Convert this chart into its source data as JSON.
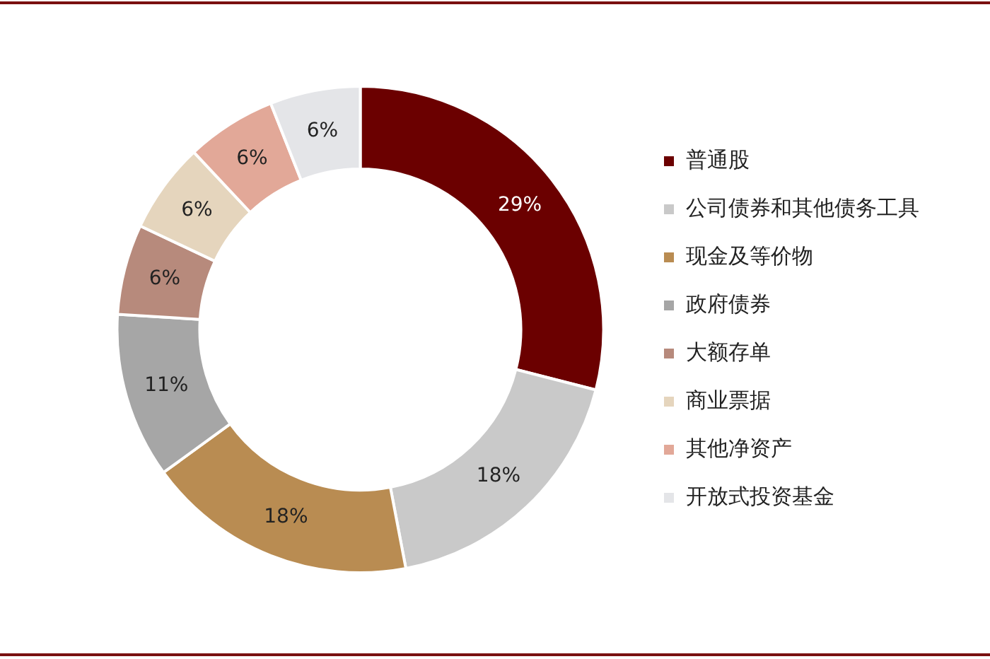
{
  "chart_data": {
    "type": "donut",
    "categories": [
      "普通股",
      "公司债券和其他债务工具",
      "现金及等价物",
      "政府债券",
      "大额存单",
      "商业票据",
      "其他净资产",
      "开放式投资基金"
    ],
    "values": [
      29,
      18,
      18,
      11,
      6,
      6,
      6,
      6
    ],
    "value_labels": [
      "29%",
      "18%",
      "18%",
      "11%",
      "6%",
      "6%",
      "6%",
      "6%"
    ],
    "colors": [
      "#6b0000",
      "#c9c9c9",
      "#b98c52",
      "#a6a6a6",
      "#b78a7c",
      "#e5d5bd",
      "#e2a898",
      "#e4e5e8"
    ],
    "legend": "right"
  }
}
